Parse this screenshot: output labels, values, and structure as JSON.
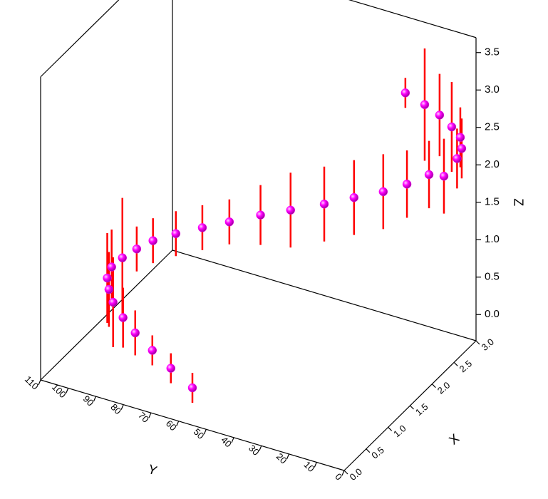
{
  "chart_data": {
    "type": "scatter3d",
    "x_label": "X",
    "y_label": "Y",
    "z_label": "Z",
    "xlim": [
      0,
      3
    ],
    "ylim": [
      0,
      110
    ],
    "zlim": [
      -0.35,
      3.7
    ],
    "xticks": [
      {
        "value": 0,
        "label": "0.0"
      },
      {
        "value": 0.5,
        "label": "0.5"
      },
      {
        "value": 1,
        "label": "1.0"
      },
      {
        "value": 1.5,
        "label": "1.5"
      },
      {
        "value": 2,
        "label": "2.0"
      },
      {
        "value": 2.5,
        "label": "2.5"
      },
      {
        "value": 3,
        "label": "3.0"
      }
    ],
    "yticks": [
      0,
      10,
      20,
      30,
      40,
      50,
      60,
      70,
      80,
      90,
      100,
      110
    ],
    "zticks": [
      {
        "value": 0,
        "label": "0.0"
      },
      {
        "value": 0.5,
        "label": "0.5"
      },
      {
        "value": 1,
        "label": "1.0"
      },
      {
        "value": 1.5,
        "label": "1.5"
      },
      {
        "value": 2,
        "label": "2.0"
      },
      {
        "value": 2.5,
        "label": "2.5"
      },
      {
        "value": 3,
        "label": "3.0"
      },
      {
        "value": 3.5,
        "label": "3.5"
      }
    ],
    "point_color": "#ff00ff",
    "error_color": "#ff0000",
    "x": [
      0,
      0.1,
      0.2,
      0.3,
      0.4,
      0.5,
      0.6,
      0.7,
      0.8,
      0.9,
      1.0,
      1.1,
      1.2,
      1.3,
      1.4,
      1.5,
      1.6,
      1.7,
      1.8,
      1.9,
      2.0,
      2.1,
      2.27,
      2.6,
      2.75,
      2.9,
      3,
      3,
      3,
      3
    ],
    "y": [
      55,
      64.4,
      72.7,
      80.5,
      86.5,
      91.7,
      94.8,
      97,
      97,
      94.7,
      91.1,
      86.8,
      80.1,
      72.1,
      63.9,
      54.2,
      44.9,
      34.3,
      25.1,
      16.1,
      9.1,
      2.7,
      0,
      0.5,
      1.2,
      4.1,
      8.8,
      13.2,
      18.6,
      25.6
    ],
    "z": [
      0.15,
      0.25,
      0.34,
      0.43,
      0.51,
      0.6,
      0.68,
      0.75,
      0.84,
      0.93,
      1.03,
      1.13,
      1.24,
      1.35,
      1.46,
      1.6,
      1.71,
      1.85,
      1.98,
      2.1,
      2.22,
      2.36,
      2.27,
      2.31,
      2.35,
      2.38,
      2.41,
      2.52,
      2.6,
      2.68
    ],
    "z_error": [
      0.2,
      0.2,
      0.2,
      0.3,
      0.4,
      0.6,
      0.5,
      0.6,
      0.5,
      0.8,
      0.3,
      0.3,
      0.3,
      0.3,
      0.3,
      0.4,
      0.5,
      0.5,
      0.5,
      0.5,
      0.45,
      0.45,
      0.5,
      0.4,
      0.4,
      0.4,
      0.6,
      0.55,
      0.75,
      0.2
    ]
  }
}
